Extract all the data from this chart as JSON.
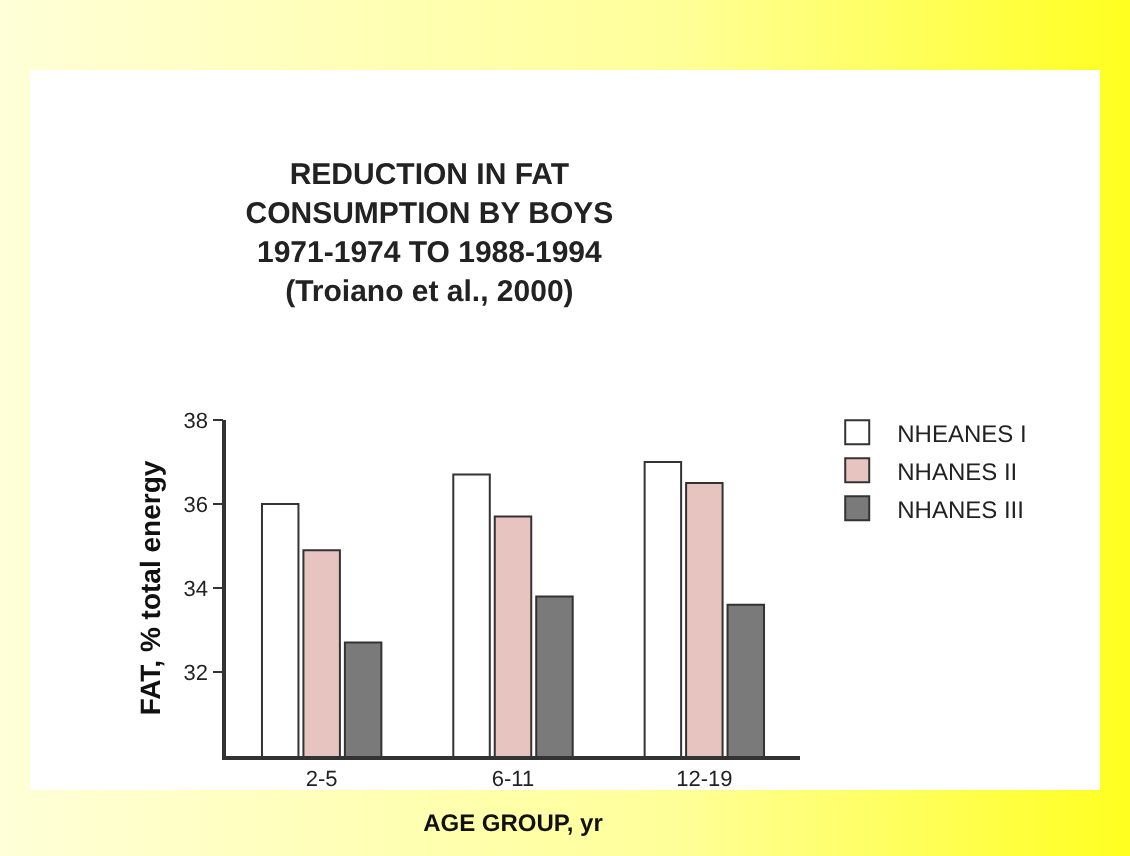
{
  "chart_data": {
    "type": "bar",
    "title": "REDUCTION IN FAT\nCONSUMPTION BY BOYS\n1971-1974 TO 1988-1994\n(Troiano et al., 2000)",
    "xlabel": "AGE GROUP, yr",
    "ylabel": "FAT, % total energy",
    "categories": [
      "2-5",
      "6-11",
      "12-19"
    ],
    "series": [
      {
        "name": "NHEANES I",
        "color": "#ffffff",
        "values": [
          36.0,
          36.7,
          37.0
        ]
      },
      {
        "name": "NHANES II",
        "color": "#e8c4c0",
        "values": [
          34.9,
          35.7,
          36.5
        ]
      },
      {
        "name": "NHANES III",
        "color": "#7a7a7a",
        "values": [
          32.7,
          33.8,
          33.6
        ]
      }
    ],
    "ylim": [
      30,
      38
    ],
    "yticks": [
      32,
      34,
      36,
      38
    ],
    "grid": false,
    "legend": "top right"
  }
}
